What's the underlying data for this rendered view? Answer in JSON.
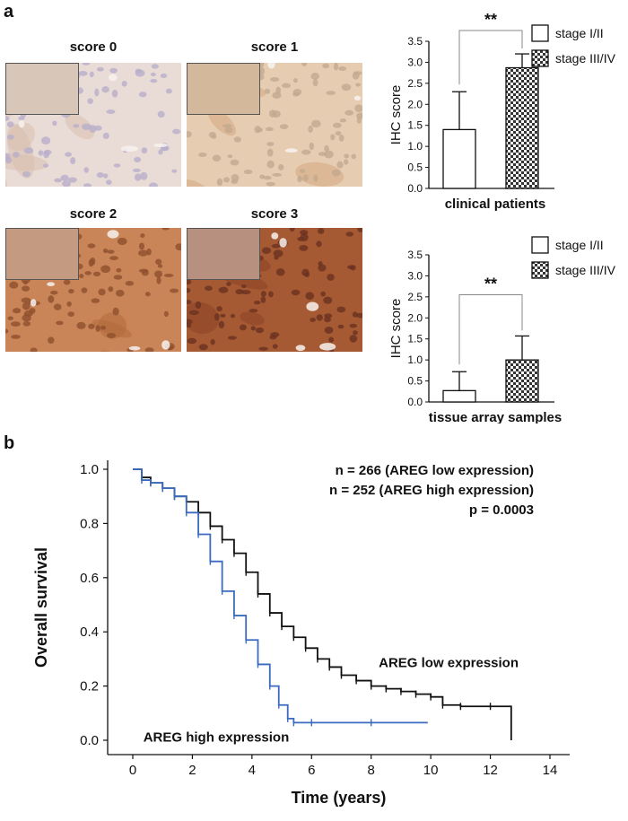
{
  "panel_a_letter": "a",
  "panel_b_letter": "b",
  "micrographs": [
    {
      "label": "score 0",
      "base": "#e9dcd6",
      "cell": "#b8aecb",
      "stain": "#d9bfae",
      "inset": "#d8c6b8"
    },
    {
      "label": "score 1",
      "base": "#e6cdb2",
      "cell": "#c3a98f",
      "stain": "#d4a87f",
      "inset": "#d4b89c"
    },
    {
      "label": "score 2",
      "base": "#c98557",
      "cell": "#8e4f2d",
      "stain": "#b06a3c",
      "inset": "#c49a80"
    },
    {
      "label": "score 3",
      "base": "#a65a33",
      "cell": "#6a3220",
      "stain": "#8a4427",
      "inset": "#b89080"
    }
  ],
  "chart_data": [
    {
      "type": "bar",
      "categories": [
        "stage I/II",
        "stage III/IV"
      ],
      "values": [
        1.4,
        2.87
      ],
      "errors": [
        0.9,
        0.33
      ],
      "ylabel": "IHC score",
      "xlabel": "clinical  patients",
      "ylim": [
        0,
        3.5
      ],
      "yticks": [
        "0.0",
        "0.5",
        "1.0",
        "1.5",
        "2.0",
        "2.5",
        "3.0",
        "3.5"
      ],
      "significance": "**",
      "legend": [
        "stage I/II",
        "stage III/IV"
      ],
      "legend_position": "top-right"
    },
    {
      "type": "bar",
      "categories": [
        "stage I/II",
        "stage III/IV"
      ],
      "values": [
        0.27,
        1.0
      ],
      "errors": [
        0.45,
        0.57
      ],
      "ylabel": "IHC score",
      "xlabel": "tissue  array samples",
      "ylim": [
        0,
        3.5
      ],
      "yticks": [
        "0.0",
        "0.5",
        "1.0",
        "1.5",
        "2.0",
        "2.5",
        "3.0",
        "3.5"
      ],
      "significance": "**",
      "legend": [
        "stage I/II",
        "stage III/IV"
      ],
      "legend_position": "top-right"
    },
    {
      "type": "line",
      "subtype": "kaplan-meier",
      "xlabel": "Time (years)",
      "ylabel": "Overall survival",
      "xlim": [
        0,
        14
      ],
      "ylim": [
        0,
        1.0
      ],
      "xticks": [
        "0",
        "2",
        "4",
        "6",
        "8",
        "10",
        "12",
        "14"
      ],
      "yticks": [
        "0.0",
        "0.2",
        "0.4",
        "0.6",
        "0.8",
        "1.0"
      ],
      "annotations": [
        "n = 266 (AREG low expression)",
        "n = 252 (AREG high expression)",
        "p = 0.0003"
      ],
      "series": [
        {
          "name": "AREG low expression",
          "color": "#111111",
          "x": [
            0,
            0.3,
            0.6,
            1.0,
            1.4,
            1.8,
            2.2,
            2.6,
            3.0,
            3.4,
            3.8,
            4.2,
            4.6,
            5.0,
            5.4,
            5.8,
            6.2,
            6.6,
            7.0,
            7.5,
            8.0,
            8.5,
            9.0,
            9.5,
            10.0,
            10.4,
            11.0,
            12.0,
            12.7
          ],
          "y": [
            1.0,
            0.97,
            0.95,
            0.93,
            0.9,
            0.88,
            0.84,
            0.79,
            0.74,
            0.69,
            0.62,
            0.54,
            0.47,
            0.42,
            0.38,
            0.34,
            0.3,
            0.27,
            0.24,
            0.22,
            0.2,
            0.19,
            0.18,
            0.17,
            0.16,
            0.13,
            0.125,
            0.125,
            0.0
          ]
        },
        {
          "name": "AREG high expression",
          "color": "#3a6bbf",
          "x": [
            0,
            0.3,
            0.6,
            1.0,
            1.4,
            1.8,
            2.2,
            2.6,
            3.0,
            3.4,
            3.8,
            4.2,
            4.6,
            4.9,
            5.2,
            5.4,
            6.0,
            8.0,
            9.9
          ],
          "y": [
            1.0,
            0.96,
            0.95,
            0.93,
            0.9,
            0.84,
            0.76,
            0.66,
            0.55,
            0.46,
            0.37,
            0.28,
            0.2,
            0.13,
            0.08,
            0.065,
            0.065,
            0.065,
            0.065
          ]
        }
      ],
      "curve_labels": [
        "AREG low expression",
        "AREG high expression"
      ]
    }
  ]
}
